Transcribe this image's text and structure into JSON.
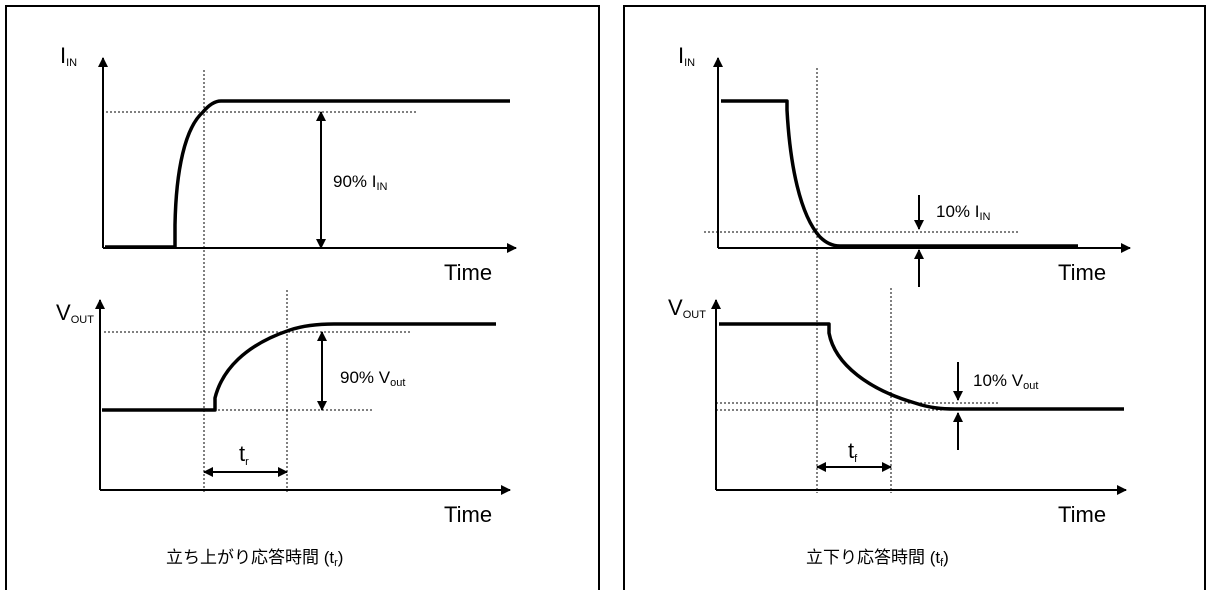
{
  "left_panel": {
    "top_y_label_main": "I",
    "top_y_label_sub": "IN",
    "top_x_label": "Time",
    "top_anno_main": "90% I",
    "top_anno_sub": "IN",
    "bottom_y_label_main": "V",
    "bottom_y_label_sub": "OUT",
    "bottom_x_label": "Time",
    "bottom_anno_main": "90% V",
    "bottom_anno_sub": "out",
    "interval_main": "t",
    "interval_sub": "r",
    "caption_main": "立ち上がり応答時間  (t",
    "caption_sub": "r",
    "caption_end": ")"
  },
  "right_panel": {
    "top_y_label_main": "I",
    "top_y_label_sub": "IN",
    "top_x_label": "Time",
    "top_anno_main": "10% I",
    "top_anno_sub": "IN",
    "bottom_y_label_main": "V",
    "bottom_y_label_sub": "OUT",
    "bottom_x_label": "Time",
    "bottom_anno_main": "10% V",
    "bottom_anno_sub": "out",
    "interval_main": "t",
    "interval_sub": "f",
    "caption_main": "立下り応答時間  (t",
    "caption_sub": "f",
    "caption_end": ")"
  }
}
